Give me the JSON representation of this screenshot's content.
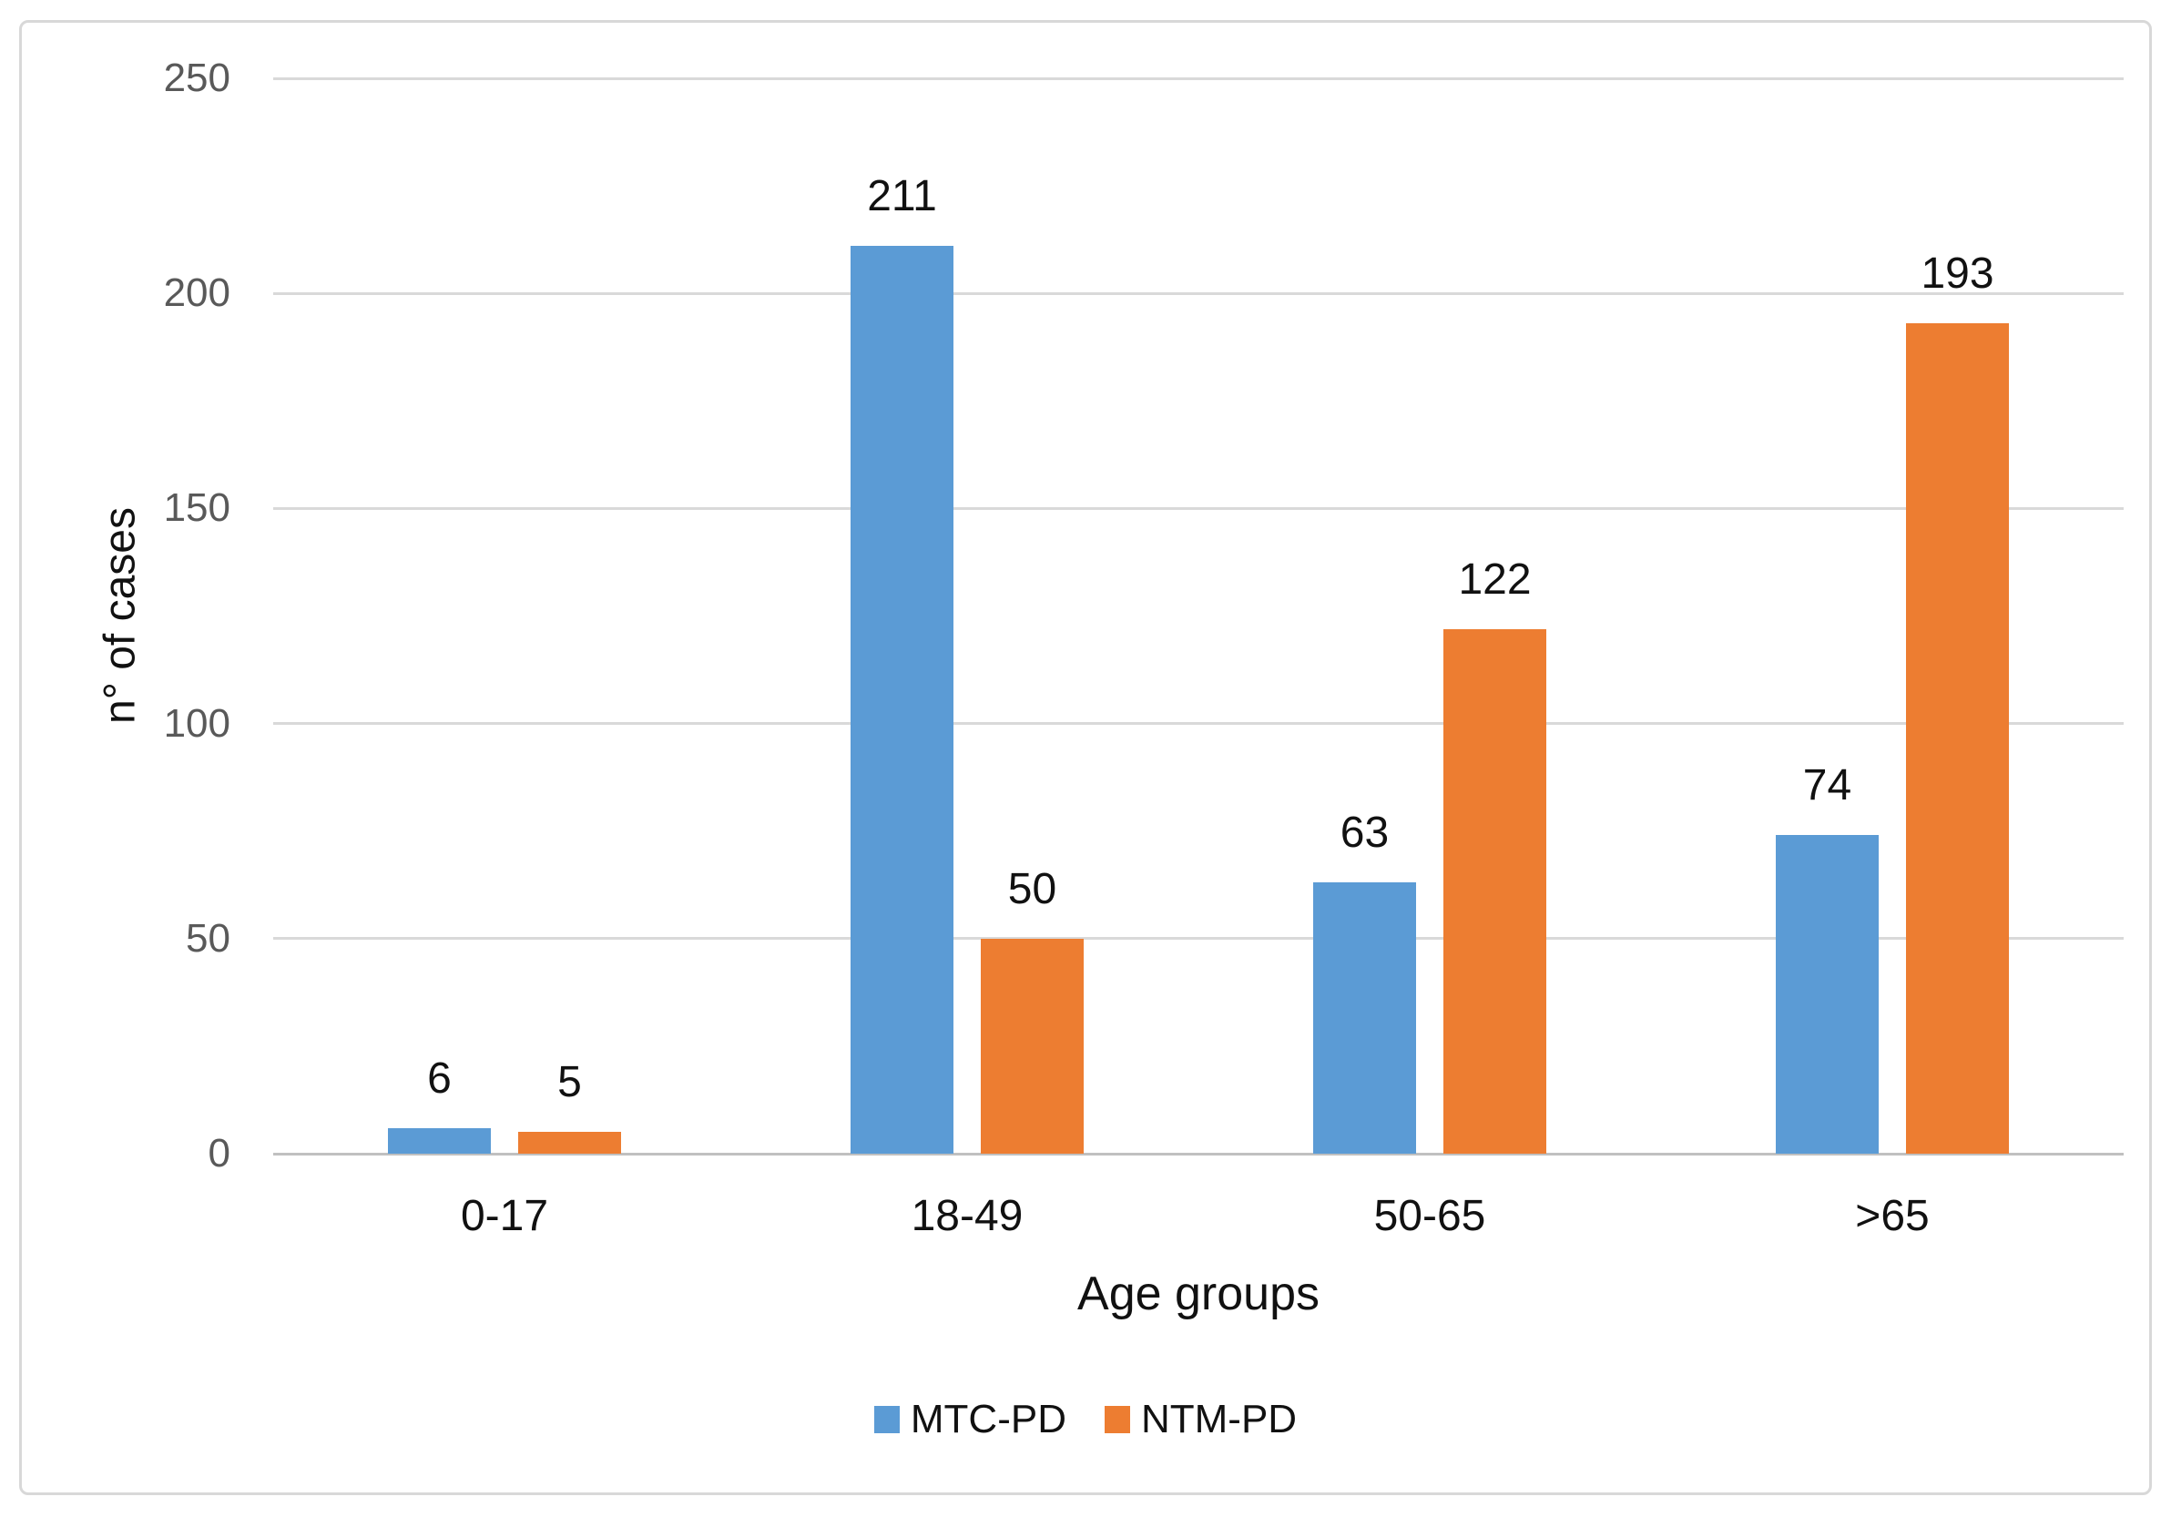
{
  "chart_data": {
    "type": "bar",
    "title": "",
    "categories": [
      "0-17",
      "18-49",
      "50-65",
      ">65"
    ],
    "series": [
      {
        "name": "MTC-PD",
        "color": "#5B9BD5",
        "values": [
          6,
          211,
          63,
          74
        ]
      },
      {
        "name": "NTM-PD",
        "color": "#ED7D31",
        "values": [
          5,
          50,
          122,
          193
        ]
      }
    ],
    "xlabel": "Age groups",
    "ylabel": "n° of cases",
    "ylim": [
      0,
      250
    ],
    "yticks": [
      0,
      50,
      100,
      150,
      200,
      250
    ],
    "grid": "horizontal",
    "data_labels": true,
    "legend_position": "bottom-center",
    "colors": {
      "gridline": "#D9D9D9",
      "axis_line": "#C0C0C0",
      "tick_label": "#595959",
      "text": "#111111",
      "figure_border": "#D8D8D8",
      "background": "#FFFFFF"
    }
  }
}
